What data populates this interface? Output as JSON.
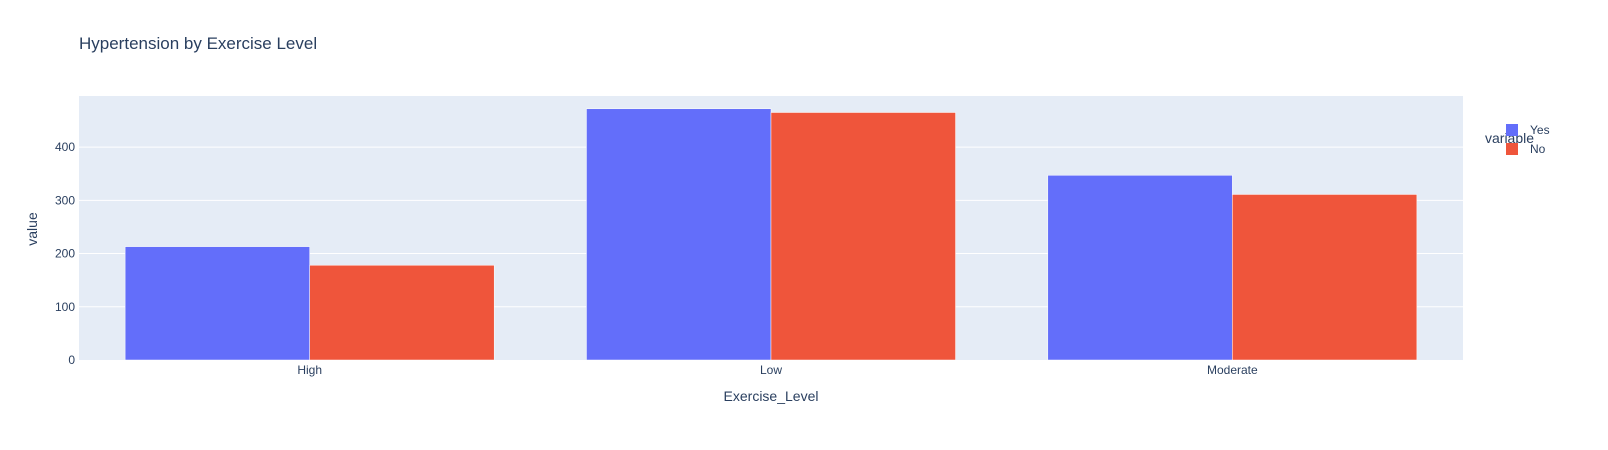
{
  "chart_data": {
    "type": "bar",
    "barmode": "group",
    "title": "Hypertension by Exercise Level",
    "xlabel": "Exercise_Level",
    "ylabel": "value",
    "categories": [
      "High",
      "Low",
      "Moderate"
    ],
    "series": [
      {
        "name": "Yes",
        "values": [
          213,
          472,
          347
        ],
        "color": "#636efa"
      },
      {
        "name": "No",
        "values": [
          178,
          465,
          311
        ],
        "color": "#ef553b"
      }
    ],
    "ylim": [
      0,
      496
    ],
    "yticks": [
      0,
      100,
      200,
      300,
      400
    ],
    "legend": {
      "title": "variable",
      "position": "top-right"
    },
    "grid": true,
    "plot_bg": "#e5ecf6",
    "grid_color": "#ffffff"
  }
}
